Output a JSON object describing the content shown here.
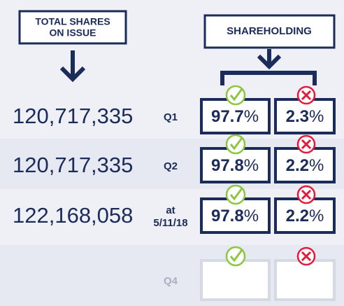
{
  "header": {
    "total_shares": [
      "TOTAL SHARES",
      "ON ISSUE"
    ],
    "shareholding": "SHAREHOLDING"
  },
  "rows": [
    {
      "shares": "120,717,335",
      "label": [
        "Q1"
      ],
      "for": "97.7%",
      "against": "2.3%"
    },
    {
      "shares": "120,717,335",
      "label": [
        "Q2"
      ],
      "for": "97.8%",
      "against": "2.2%"
    },
    {
      "shares": "122,168,058",
      "label": [
        "at",
        "5/11/18"
      ],
      "for": "97.8%",
      "against": "2.2%"
    },
    {
      "label": [
        "Q4"
      ]
    }
  ]
}
